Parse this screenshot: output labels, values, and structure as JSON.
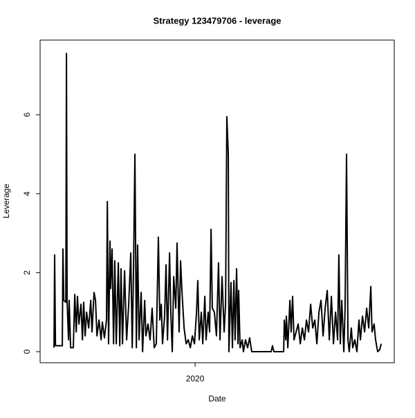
{
  "chart_data": {
    "type": "line",
    "title": "Strategy 123479706 - leverage",
    "x_label": "Date",
    "y_label": "Leverage",
    "color": "#000000",
    "x": [
      2019.32,
      2019.323,
      2019.327,
      2019.36,
      2019.363,
      2019.367,
      2019.377,
      2019.38,
      2019.383,
      2019.39,
      2019.393,
      2019.4,
      2019.413,
      2019.42,
      2019.427,
      2019.433,
      2019.44,
      2019.45,
      2019.457,
      2019.463,
      2019.47,
      2019.477,
      2019.487,
      2019.497,
      2019.503,
      2019.513,
      2019.52,
      2019.527,
      2019.537,
      2019.547,
      2019.553,
      2019.563,
      2019.573,
      2019.577,
      2019.583,
      2019.59,
      2019.593,
      2019.6,
      2019.607,
      2019.613,
      2019.62,
      2019.63,
      2019.637,
      2019.643,
      2019.65,
      2019.66,
      2019.67,
      2019.68,
      2019.69,
      2019.697,
      2019.703,
      2019.71,
      2019.717,
      2019.723,
      2019.73,
      2019.74,
      2019.747,
      2019.757,
      2019.763,
      2019.773,
      2019.783,
      2019.793,
      2019.803,
      2019.813,
      2019.823,
      2019.83,
      2019.837,
      2019.843,
      2019.853,
      2019.86,
      2019.867,
      2019.877,
      2019.883,
      2019.89,
      2019.897,
      2019.907,
      2019.913,
      2019.923,
      2019.93,
      2019.937,
      2019.947,
      2019.957,
      2019.967,
      2019.977,
      2019.987,
      2019.997,
      2020.007,
      2020.013,
      2020.02,
      2020.03,
      2020.037,
      2020.047,
      2020.053,
      2020.063,
      2020.07,
      2020.077,
      2020.083,
      2020.093,
      2020.103,
      2020.113,
      2020.12,
      2020.13,
      2020.14,
      2020.147,
      2020.153,
      2020.16,
      2020.163,
      2020.173,
      2020.18,
      2020.187,
      2020.193,
      2020.2,
      2020.207,
      2020.21,
      2020.217,
      2020.227,
      2020.233,
      2020.243,
      2020.253,
      2020.263,
      2020.273,
      2020.327,
      2020.367,
      2020.373,
      2020.38,
      2020.427,
      2020.43,
      2020.437,
      2020.44,
      2020.447,
      2020.457,
      2020.463,
      2020.47,
      2020.477,
      2020.487,
      2020.497,
      2020.507,
      2020.517,
      2020.527,
      2020.537,
      2020.547,
      2020.557,
      2020.567,
      2020.577,
      2020.587,
      2020.597,
      2020.607,
      2020.617,
      2020.627,
      2020.637,
      2020.647,
      2020.657,
      2020.667,
      2020.677,
      2020.687,
      2020.693,
      2020.7,
      2020.707,
      2020.717,
      2020.723,
      2020.73,
      2020.737,
      2020.743,
      2020.753,
      2020.76,
      2020.77,
      2020.78,
      2020.79,
      2020.797,
      2020.807,
      2020.817,
      2020.827,
      2020.837,
      2020.847,
      2020.853,
      2020.863,
      2020.87,
      2020.88,
      2020.89,
      2020.897
    ],
    "values": [
      0.1,
      2.45,
      0.15,
      0.15,
      2.6,
      1.3,
      1.25,
      7.55,
      1.3,
      0.3,
      1.3,
      0.1,
      0.1,
      1.45,
      0.5,
      1.4,
      0.7,
      1.2,
      0.3,
      1.25,
      0.4,
      1.0,
      0.6,
      1.3,
      0.5,
      1.5,
      1.3,
      0.4,
      0.8,
      0.3,
      0.75,
      0.35,
      0.8,
      3.8,
      0.2,
      2.8,
      1.6,
      2.6,
      0.2,
      2.3,
      0.2,
      2.25,
      0.15,
      2.1,
      0.2,
      2.05,
      0.3,
      1.2,
      2.5,
      0.1,
      2.0,
      5.0,
      0.1,
      2.7,
      0.3,
      1.5,
      0.0,
      1.3,
      0.4,
      0.7,
      0.3,
      1.1,
      0.1,
      0.2,
      2.9,
      0.8,
      1.2,
      0.2,
      0.9,
      2.2,
      0.3,
      2.5,
      1.0,
      0.0,
      1.9,
      1.1,
      2.75,
      0.5,
      2.3,
      1.5,
      0.6,
      0.2,
      0.3,
      0.1,
      0.4,
      0.2,
      1.0,
      1.8,
      0.3,
      1.0,
      0.2,
      1.4,
      0.3,
      1.0,
      0.5,
      3.1,
      1.1,
      1.0,
      0.4,
      2.25,
      0.3,
      1.9,
      0.5,
      1.2,
      5.95,
      5.0,
      0.0,
      1.75,
      0.1,
      1.8,
      0.3,
      2.1,
      0.2,
      1.55,
      0.1,
      0.3,
      0.0,
      0.3,
      0.1,
      0.35,
      0.0,
      0.0,
      0.0,
      0.15,
      0.0,
      0.0,
      0.8,
      0.3,
      0.9,
      0.1,
      1.3,
      0.5,
      1.4,
      0.3,
      0.5,
      0.7,
      0.2,
      0.6,
      0.3,
      0.8,
      0.5,
      1.2,
      0.6,
      0.8,
      0.2,
      1.0,
      1.3,
      0.4,
      1.1,
      1.55,
      0.3,
      1.4,
      0.2,
      1.0,
      0.3,
      2.45,
      0.2,
      1.3,
      0.0,
      1.1,
      5.0,
      0.3,
      0.0,
      0.6,
      0.1,
      0.3,
      0.0,
      0.8,
      0.3,
      0.9,
      0.5,
      1.1,
      0.6,
      1.65,
      0.5,
      0.7,
      0.3,
      0.0,
      0.05,
      0.2
    ],
    "xlim": [
      2019.253,
      2020.96
    ],
    "xticks": [
      {
        "value": 2020,
        "label": "2020"
      }
    ],
    "ylim": [
      -0.28,
      7.89
    ],
    "yticks": [
      0,
      2,
      4,
      6
    ]
  }
}
